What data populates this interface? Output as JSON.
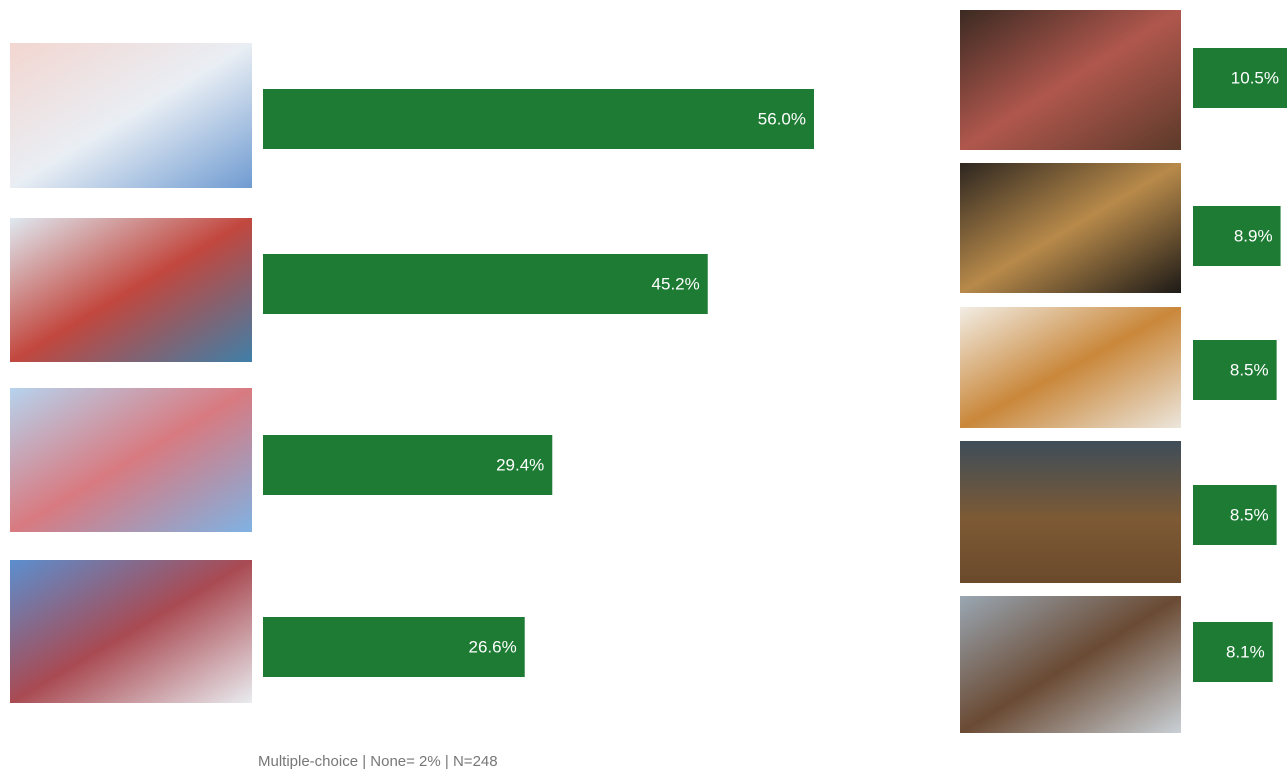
{
  "chart_data": [
    {
      "type": "bar",
      "categories": [
        null,
        null,
        null,
        null
      ],
      "values": [
        56.0,
        45.2,
        29.4,
        26.6
      ],
      "value_labels": [
        "56.0%",
        "45.2%",
        "29.4%",
        "26.6%"
      ],
      "color": "#1e7b34"
    },
    {
      "type": "bar",
      "categories": [
        null,
        null,
        null,
        null,
        null
      ],
      "values": [
        10.5,
        8.9,
        8.5,
        8.5,
        8.1
      ],
      "value_labels": [
        "10.5%",
        "8.9%",
        "8.5%",
        "8.5%",
        "8.1%"
      ],
      "color": "#1e7b34"
    }
  ],
  "footnote": "Multiple-choice | None= 2% | N=248"
}
